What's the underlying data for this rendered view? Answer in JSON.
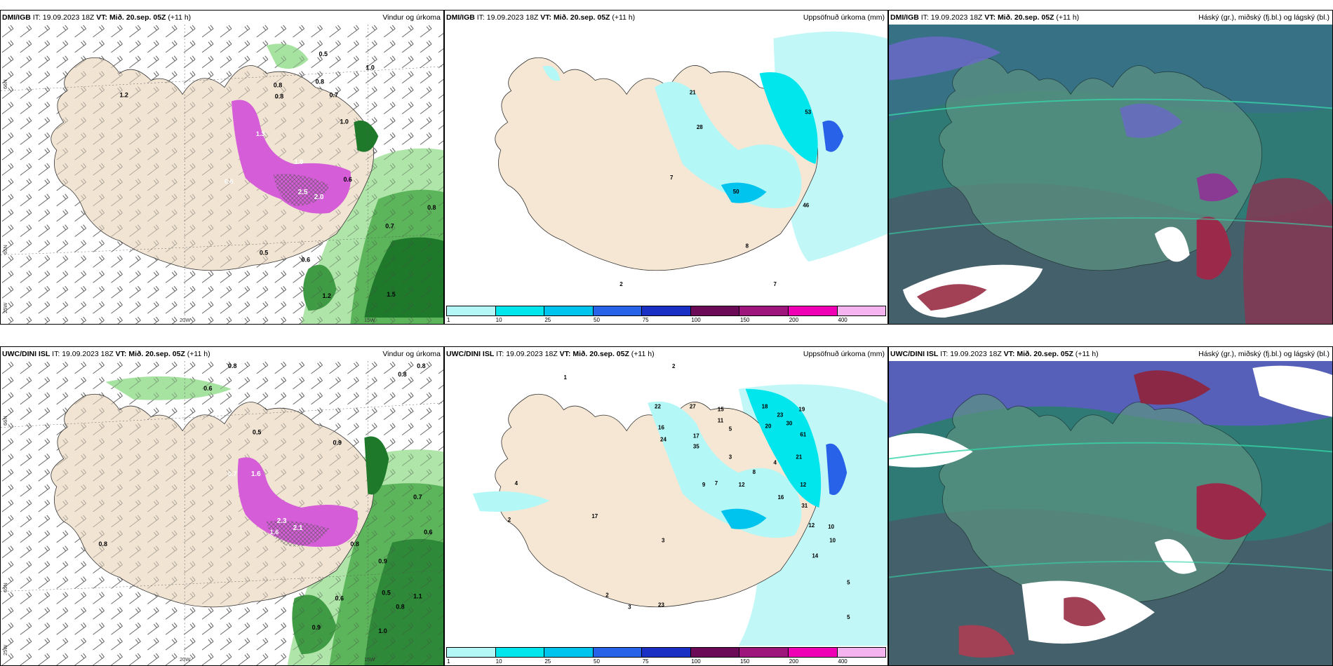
{
  "header": {
    "it_prefix": "IT:",
    "vt_prefix": "VT:"
  },
  "panels": [
    {
      "id": "dmi-wind",
      "source": "DMI/IGB",
      "it": "19.09.2023 18Z",
      "vt": "Mið. 20.sep. 05Z",
      "lead": "(+11 h)",
      "title": "Vindur og úrkoma",
      "lat_labels": [
        "66N",
        "65N",
        "25W"
      ],
      "lon_labels": [
        "20W",
        "15W"
      ],
      "values": [
        "0.5",
        "1.0",
        "0.8",
        "0.8",
        "0.8",
        "0.7",
        "1.0",
        "1.2",
        "1.3",
        "0.6",
        "1.0",
        "0.6",
        "2.5",
        "2.0",
        "0.8",
        "0.7",
        "1.5",
        "1.2",
        "0.5",
        "0.6"
      ]
    },
    {
      "id": "dmi-precip",
      "source": "DMI/IGB",
      "it": "19.09.2023 18Z",
      "vt": "Mið. 20.sep. 05Z",
      "lead": "(+11 h)",
      "title": "Uppsöfnuð úrkoma (mm)",
      "values": [
        "21",
        "53",
        "28",
        "7",
        "50",
        "46",
        "8",
        "2",
        "7"
      ]
    },
    {
      "id": "dmi-cloud",
      "source": "DMI/IGB",
      "it": "19.09.2023 18Z",
      "vt": "Mið. 20.sep. 05Z",
      "lead": "(+11 h)",
      "title": "Háský (gr.), miðský (fj.bl.) og lágský (bl.)"
    },
    {
      "id": "uwc-wind",
      "source": "UWC/DINI ISL",
      "it": "19.09.2023 18Z",
      "vt": "Mið. 20.sep. 05Z",
      "lead": "(+11 h)",
      "title": "Vindur og úrkoma",
      "lat_labels": [
        "66N",
        "65N",
        "25W"
      ],
      "lon_labels": [
        "20W",
        "15W"
      ],
      "values": [
        "0.6",
        "0.8",
        "0.8",
        "0.8",
        "0.5",
        "0.9",
        "1.6",
        "0.7",
        "2.3",
        "2.1",
        "1.6",
        "0.8",
        "0.7",
        "0.6",
        "0.8",
        "0.9",
        "1.1",
        "0.9",
        "0.6",
        "0.5",
        "0.8",
        "1.0"
      ]
    },
    {
      "id": "uwc-precip",
      "source": "UWC/DINI ISL",
      "it": "19.09.2023 18Z",
      "vt": "Mið. 20.sep. 05Z",
      "lead": "(+11 h)",
      "title": "Uppsöfnuð úrkoma (mm)",
      "values": [
        "1",
        "2",
        "22",
        "27",
        "15",
        "18",
        "23",
        "19",
        "16",
        "24",
        "17",
        "35",
        "11",
        "5",
        "20",
        "30",
        "61",
        "21",
        "3",
        "4",
        "8",
        "12",
        "12",
        "16",
        "9",
        "7",
        "31",
        "12",
        "10",
        "17",
        "4",
        "2",
        "3",
        "5",
        "5",
        "14",
        "10",
        "2",
        "3",
        "23"
      ]
    },
    {
      "id": "uwc-cloud",
      "source": "UWC/DINI ISL",
      "it": "19.09.2023 18Z",
      "vt": "Mið. 20.sep. 05Z",
      "lead": "(+11 h)",
      "title": "Háský (gr.), miðský (fj.bl.) og lágský (bl.)"
    }
  ],
  "colorbar": {
    "colors": [
      "#b4f7f7",
      "#00e6ec",
      "#00c3ee",
      "#2862e8",
      "#1a2fc4",
      "#6b0a57",
      "#9e157c",
      "#f000b4",
      "#f5b4f0"
    ],
    "ticks": [
      "1",
      "10",
      "25",
      "50",
      "75",
      "100",
      "150",
      "200",
      "400"
    ]
  }
}
